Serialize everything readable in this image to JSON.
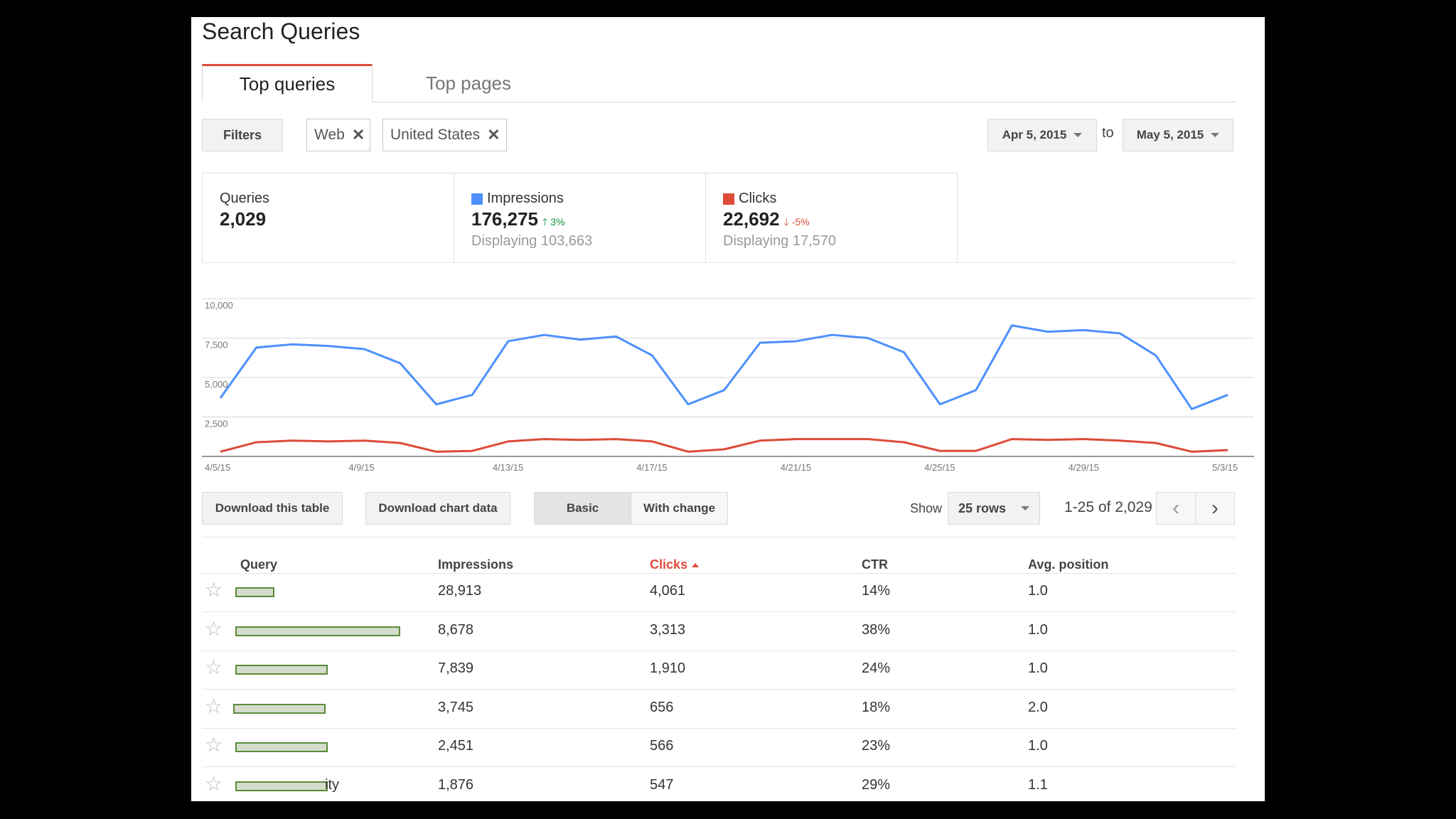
{
  "title": "Search Queries",
  "tabs": [
    {
      "label": "Top queries",
      "active": true
    },
    {
      "label": "Top pages",
      "active": false
    }
  ],
  "filters": {
    "button_label": "Filters",
    "chips": [
      "Web",
      "United States"
    ],
    "remove_icon": "close-icon"
  },
  "date_range": {
    "start": "Apr 5, 2015",
    "separator": "to",
    "end": "May 5, 2015"
  },
  "metrics": {
    "queries": {
      "label": "Queries",
      "value": "2,029"
    },
    "impressions": {
      "label": "Impressions",
      "value": "176,275",
      "change": "3%",
      "change_dir": "up",
      "sub": "Displaying 103,663",
      "color": "#4d90fe"
    },
    "clicks": {
      "label": "Clicks",
      "value": "22,692",
      "change": "-5%",
      "change_dir": "down",
      "sub": "Displaying 17,570",
      "color": "#dd4b39"
    }
  },
  "chart_data": {
    "type": "line",
    "x": [
      "4/5/15",
      "4/6/15",
      "4/7/15",
      "4/8/15",
      "4/9/15",
      "4/10/15",
      "4/11/15",
      "4/12/15",
      "4/13/15",
      "4/14/15",
      "4/15/15",
      "4/16/15",
      "4/17/15",
      "4/18/15",
      "4/19/15",
      "4/20/15",
      "4/21/15",
      "4/22/15",
      "4/23/15",
      "4/24/15",
      "4/25/15",
      "4/26/15",
      "4/27/15",
      "4/28/15",
      "4/29/15",
      "4/30/15",
      "5/1/15",
      "5/2/15",
      "5/3/15"
    ],
    "x_tick_labels": [
      "4/5/15",
      "4/9/15",
      "4/13/15",
      "4/17/15",
      "4/21/15",
      "4/25/15",
      "4/29/15",
      "5/3/15"
    ],
    "y_tick_labels": [
      "10,000",
      "7,500",
      "5,000",
      "2,500"
    ],
    "ylim": [
      0,
      10000
    ],
    "grid": true,
    "series": [
      {
        "name": "Impressions",
        "color": "#4d90fe",
        "values": [
          3700,
          6900,
          7100,
          7000,
          6800,
          5900,
          3300,
          3900,
          7300,
          7700,
          7400,
          7600,
          6400,
          3300,
          4200,
          7200,
          7300,
          7700,
          7500,
          6600,
          3300,
          4200,
          8300,
          7900,
          8000,
          7800,
          6400,
          3000,
          3900
        ]
      },
      {
        "name": "Clicks",
        "color": "#dd4b39",
        "values": [
          300,
          900,
          1000,
          950,
          1000,
          850,
          300,
          350,
          950,
          1100,
          1050,
          1100,
          950,
          300,
          450,
          1000,
          1100,
          1100,
          1100,
          900,
          350,
          350,
          1100,
          1050,
          1100,
          1000,
          850,
          300,
          400
        ]
      }
    ]
  },
  "toolbar": {
    "download_table": "Download this table",
    "download_chart": "Download chart data",
    "view_basic": "Basic",
    "view_change": "With change",
    "show_label": "Show",
    "rows_select": "25 rows",
    "pagination": "1-25 of 2,029"
  },
  "table": {
    "columns": [
      "Query",
      "Impressions",
      "Clicks",
      "CTR",
      "Avg. position"
    ],
    "sorted_column": "Clicks",
    "sort_color": "#dd4b39",
    "rows": [
      {
        "query_fragment": "",
        "impressions": "28,913",
        "clicks": "4,061",
        "ctr": "14%",
        "position": "1.0"
      },
      {
        "query_fragment": "",
        "impressions": "8,678",
        "clicks": "3,313",
        "ctr": "38%",
        "position": "1.0"
      },
      {
        "query_fragment": "",
        "impressions": "7,839",
        "clicks": "1,910",
        "ctr": "24%",
        "position": "1.0"
      },
      {
        "query_fragment": "",
        "impressions": "3,745",
        "clicks": "656",
        "ctr": "18%",
        "position": "2.0"
      },
      {
        "query_fragment": "",
        "impressions": "2,451",
        "clicks": "566",
        "ctr": "23%",
        "position": "1.0"
      },
      {
        "query_fragment": "ity",
        "impressions": "1,876",
        "clicks": "547",
        "ctr": "29%",
        "position": "1.1"
      }
    ]
  }
}
